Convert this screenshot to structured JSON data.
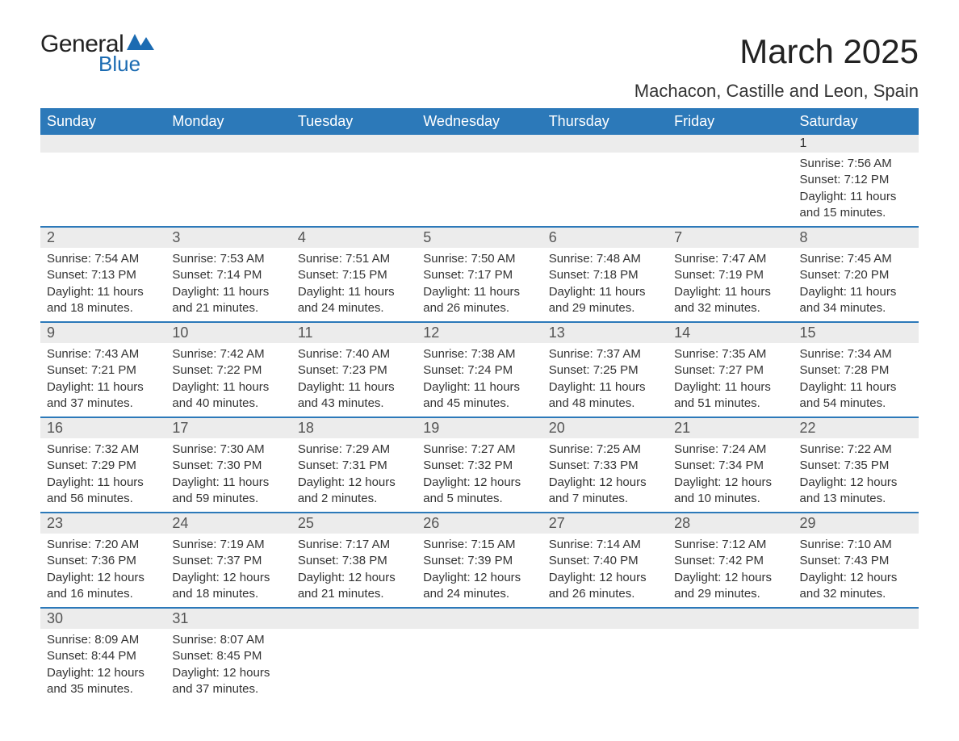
{
  "logo": {
    "text_general": "General",
    "text_blue": "Blue",
    "accent_color": "#1b6bb2"
  },
  "header": {
    "month_title": "March 2025",
    "location": "Machacon, Castille and Leon, Spain"
  },
  "calendar": {
    "header_bg": "#2c79b9",
    "header_fg": "#ffffff",
    "row_separator_color": "#2c79b9",
    "daynum_bg": "#ececec",
    "text_color": "#333333",
    "weekdays": [
      "Sunday",
      "Monday",
      "Tuesday",
      "Wednesday",
      "Thursday",
      "Friday",
      "Saturday"
    ],
    "weeks": [
      [
        null,
        null,
        null,
        null,
        null,
        null,
        {
          "n": "1",
          "sunrise": "Sunrise: 7:56 AM",
          "sunset": "Sunset: 7:12 PM",
          "day1": "Daylight: 11 hours",
          "day2": "and 15 minutes."
        }
      ],
      [
        {
          "n": "2",
          "sunrise": "Sunrise: 7:54 AM",
          "sunset": "Sunset: 7:13 PM",
          "day1": "Daylight: 11 hours",
          "day2": "and 18 minutes."
        },
        {
          "n": "3",
          "sunrise": "Sunrise: 7:53 AM",
          "sunset": "Sunset: 7:14 PM",
          "day1": "Daylight: 11 hours",
          "day2": "and 21 minutes."
        },
        {
          "n": "4",
          "sunrise": "Sunrise: 7:51 AM",
          "sunset": "Sunset: 7:15 PM",
          "day1": "Daylight: 11 hours",
          "day2": "and 24 minutes."
        },
        {
          "n": "5",
          "sunrise": "Sunrise: 7:50 AM",
          "sunset": "Sunset: 7:17 PM",
          "day1": "Daylight: 11 hours",
          "day2": "and 26 minutes."
        },
        {
          "n": "6",
          "sunrise": "Sunrise: 7:48 AM",
          "sunset": "Sunset: 7:18 PM",
          "day1": "Daylight: 11 hours",
          "day2": "and 29 minutes."
        },
        {
          "n": "7",
          "sunrise": "Sunrise: 7:47 AM",
          "sunset": "Sunset: 7:19 PM",
          "day1": "Daylight: 11 hours",
          "day2": "and 32 minutes."
        },
        {
          "n": "8",
          "sunrise": "Sunrise: 7:45 AM",
          "sunset": "Sunset: 7:20 PM",
          "day1": "Daylight: 11 hours",
          "day2": "and 34 minutes."
        }
      ],
      [
        {
          "n": "9",
          "sunrise": "Sunrise: 7:43 AM",
          "sunset": "Sunset: 7:21 PM",
          "day1": "Daylight: 11 hours",
          "day2": "and 37 minutes."
        },
        {
          "n": "10",
          "sunrise": "Sunrise: 7:42 AM",
          "sunset": "Sunset: 7:22 PM",
          "day1": "Daylight: 11 hours",
          "day2": "and 40 minutes."
        },
        {
          "n": "11",
          "sunrise": "Sunrise: 7:40 AM",
          "sunset": "Sunset: 7:23 PM",
          "day1": "Daylight: 11 hours",
          "day2": "and 43 minutes."
        },
        {
          "n": "12",
          "sunrise": "Sunrise: 7:38 AM",
          "sunset": "Sunset: 7:24 PM",
          "day1": "Daylight: 11 hours",
          "day2": "and 45 minutes."
        },
        {
          "n": "13",
          "sunrise": "Sunrise: 7:37 AM",
          "sunset": "Sunset: 7:25 PM",
          "day1": "Daylight: 11 hours",
          "day2": "and 48 minutes."
        },
        {
          "n": "14",
          "sunrise": "Sunrise: 7:35 AM",
          "sunset": "Sunset: 7:27 PM",
          "day1": "Daylight: 11 hours",
          "day2": "and 51 minutes."
        },
        {
          "n": "15",
          "sunrise": "Sunrise: 7:34 AM",
          "sunset": "Sunset: 7:28 PM",
          "day1": "Daylight: 11 hours",
          "day2": "and 54 minutes."
        }
      ],
      [
        {
          "n": "16",
          "sunrise": "Sunrise: 7:32 AM",
          "sunset": "Sunset: 7:29 PM",
          "day1": "Daylight: 11 hours",
          "day2": "and 56 minutes."
        },
        {
          "n": "17",
          "sunrise": "Sunrise: 7:30 AM",
          "sunset": "Sunset: 7:30 PM",
          "day1": "Daylight: 11 hours",
          "day2": "and 59 minutes."
        },
        {
          "n": "18",
          "sunrise": "Sunrise: 7:29 AM",
          "sunset": "Sunset: 7:31 PM",
          "day1": "Daylight: 12 hours",
          "day2": "and 2 minutes."
        },
        {
          "n": "19",
          "sunrise": "Sunrise: 7:27 AM",
          "sunset": "Sunset: 7:32 PM",
          "day1": "Daylight: 12 hours",
          "day2": "and 5 minutes."
        },
        {
          "n": "20",
          "sunrise": "Sunrise: 7:25 AM",
          "sunset": "Sunset: 7:33 PM",
          "day1": "Daylight: 12 hours",
          "day2": "and 7 minutes."
        },
        {
          "n": "21",
          "sunrise": "Sunrise: 7:24 AM",
          "sunset": "Sunset: 7:34 PM",
          "day1": "Daylight: 12 hours",
          "day2": "and 10 minutes."
        },
        {
          "n": "22",
          "sunrise": "Sunrise: 7:22 AM",
          "sunset": "Sunset: 7:35 PM",
          "day1": "Daylight: 12 hours",
          "day2": "and 13 minutes."
        }
      ],
      [
        {
          "n": "23",
          "sunrise": "Sunrise: 7:20 AM",
          "sunset": "Sunset: 7:36 PM",
          "day1": "Daylight: 12 hours",
          "day2": "and 16 minutes."
        },
        {
          "n": "24",
          "sunrise": "Sunrise: 7:19 AM",
          "sunset": "Sunset: 7:37 PM",
          "day1": "Daylight: 12 hours",
          "day2": "and 18 minutes."
        },
        {
          "n": "25",
          "sunrise": "Sunrise: 7:17 AM",
          "sunset": "Sunset: 7:38 PM",
          "day1": "Daylight: 12 hours",
          "day2": "and 21 minutes."
        },
        {
          "n": "26",
          "sunrise": "Sunrise: 7:15 AM",
          "sunset": "Sunset: 7:39 PM",
          "day1": "Daylight: 12 hours",
          "day2": "and 24 minutes."
        },
        {
          "n": "27",
          "sunrise": "Sunrise: 7:14 AM",
          "sunset": "Sunset: 7:40 PM",
          "day1": "Daylight: 12 hours",
          "day2": "and 26 minutes."
        },
        {
          "n": "28",
          "sunrise": "Sunrise: 7:12 AM",
          "sunset": "Sunset: 7:42 PM",
          "day1": "Daylight: 12 hours",
          "day2": "and 29 minutes."
        },
        {
          "n": "29",
          "sunrise": "Sunrise: 7:10 AM",
          "sunset": "Sunset: 7:43 PM",
          "day1": "Daylight: 12 hours",
          "day2": "and 32 minutes."
        }
      ],
      [
        {
          "n": "30",
          "sunrise": "Sunrise: 8:09 AM",
          "sunset": "Sunset: 8:44 PM",
          "day1": "Daylight: 12 hours",
          "day2": "and 35 minutes."
        },
        {
          "n": "31",
          "sunrise": "Sunrise: 8:07 AM",
          "sunset": "Sunset: 8:45 PM",
          "day1": "Daylight: 12 hours",
          "day2": "and 37 minutes."
        },
        null,
        null,
        null,
        null,
        null
      ]
    ]
  }
}
